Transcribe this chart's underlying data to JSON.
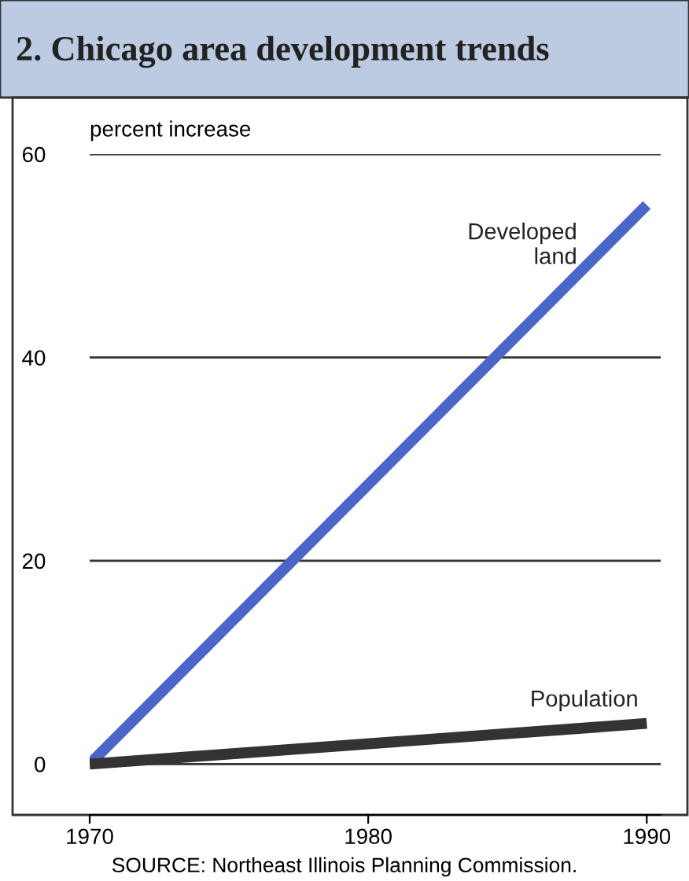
{
  "chart_data": {
    "type": "line",
    "title": "2. Chicago area development trends",
    "ylabel": "percent increase",
    "x": [
      1970,
      1990
    ],
    "series": [
      {
        "name": "Developed\nland",
        "color": "#4a66c8",
        "values": [
          0,
          55
        ]
      },
      {
        "name": "Population",
        "color": "#333333",
        "values": [
          0,
          4
        ]
      }
    ],
    "xlim": [
      1970,
      1990.5
    ],
    "xticks": [
      1970,
      1980,
      1990
    ],
    "ylim": [
      -5,
      60
    ],
    "yticks": [
      0,
      20,
      40,
      60
    ],
    "grid": "y",
    "legend": false,
    "marker": "none",
    "line_style": "solid",
    "annotations": [
      "SOURCE: Northeast Illinois Planning Commission."
    ]
  }
}
